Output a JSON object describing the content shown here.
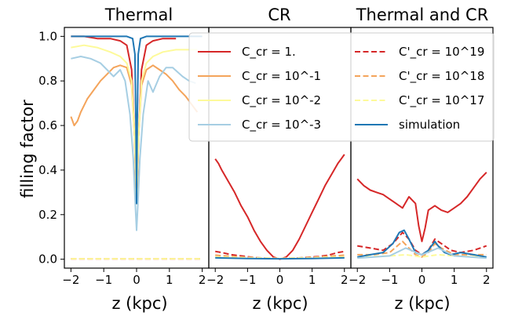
{
  "figure": {
    "ylabel": "filling factor",
    "xlabel": "z (kpc)"
  },
  "legend": {
    "left": [
      {
        "label": "C_cr = 1.",
        "color": "#d62728",
        "dash": "solid"
      },
      {
        "label": "C_cr = 10^-1",
        "color": "#f4a45b",
        "dash": "solid"
      },
      {
        "label": "C_cr = 10^-2",
        "color": "#fdfa9a",
        "dash": "solid"
      },
      {
        "label": "C_cr = 10^-3",
        "color": "#a6cee3",
        "dash": "solid"
      }
    ],
    "right": [
      {
        "label": "C'_cr = 10^19",
        "color": "#d62728",
        "dash": "dashed"
      },
      {
        "label": "C'_cr = 10^18",
        "color": "#f4a45b",
        "dash": "dashed"
      },
      {
        "label": "C'_cr = 10^17",
        "color": "#fdfa9a",
        "dash": "dashed"
      },
      {
        "label": "simulation",
        "color": "#1f77b4",
        "dash": "solid"
      }
    ]
  },
  "chart_data": [
    {
      "type": "line",
      "title": "Thermal",
      "xlabel": "z (kpc)",
      "ylabel": "filling factor",
      "xlim": [
        -2.2,
        2.2
      ],
      "ylim": [
        -0.04,
        1.04
      ],
      "xticks": [
        "−2",
        "−1",
        "0",
        "1",
        "2"
      ],
      "yticks": [
        "0.0",
        "0.2",
        "0.4",
        "0.6",
        "0.8",
        "1.0"
      ],
      "series": [
        {
          "key": "ccr_1",
          "color": "#d62728",
          "dash": "solid",
          "x": [
            -2,
            -1.6,
            -1.2,
            -0.8,
            -0.5,
            -0.3,
            -0.15,
            -0.06,
            -0.02,
            0,
            0.02,
            0.06,
            0.15,
            0.3,
            0.5,
            0.8,
            1.2
          ],
          "y": [
            1.0,
            1.0,
            0.99,
            0.99,
            0.98,
            0.96,
            0.85,
            0.55,
            0.3,
            0.25,
            0.3,
            0.55,
            0.85,
            0.96,
            0.98,
            0.99,
            0.99
          ]
        },
        {
          "key": "ccr_1e-1",
          "color": "#f4a45b",
          "dash": "solid",
          "x": [
            -2,
            -1.95,
            -1.9,
            -1.8,
            -1.7,
            -1.5,
            -1.3,
            -1.1,
            -0.9,
            -0.7,
            -0.5,
            -0.3,
            -0.15,
            -0.06,
            0,
            0.06,
            0.15,
            0.3,
            0.5,
            0.7,
            0.9,
            1.1,
            1.3,
            1.5,
            1.7,
            1.85
          ],
          "y": [
            0.64,
            0.62,
            0.6,
            0.62,
            0.66,
            0.72,
            0.76,
            0.8,
            0.83,
            0.86,
            0.87,
            0.86,
            0.78,
            0.55,
            0.25,
            0.55,
            0.78,
            0.85,
            0.87,
            0.85,
            0.83,
            0.8,
            0.76,
            0.73,
            0.69,
            0.66
          ]
        },
        {
          "key": "ccr_1e-2",
          "color": "#fdfa9a",
          "dash": "solid",
          "x": [
            -2,
            -1.6,
            -1.2,
            -0.8,
            -0.5,
            -0.3,
            -0.15,
            -0.06,
            0,
            0.06,
            0.15,
            0.3,
            0.5,
            0.8,
            1.2,
            1.6,
            1.85
          ],
          "y": [
            0.95,
            0.96,
            0.95,
            0.93,
            0.91,
            0.88,
            0.8,
            0.55,
            0.25,
            0.55,
            0.8,
            0.88,
            0.91,
            0.93,
            0.94,
            0.94,
            0.94
          ]
        },
        {
          "key": "ccr_1e-3",
          "color": "#a6cee3",
          "dash": "solid",
          "x": [
            -2,
            -1.7,
            -1.4,
            -1.1,
            -0.9,
            -0.7,
            -0.5,
            -0.35,
            -0.2,
            -0.1,
            -0.04,
            0,
            0.04,
            0.1,
            0.2,
            0.35,
            0.5,
            0.7,
            0.9,
            1.1,
            1.4,
            1.6,
            1.8
          ],
          "y": [
            0.9,
            0.91,
            0.9,
            0.88,
            0.85,
            0.82,
            0.85,
            0.8,
            0.65,
            0.45,
            0.25,
            0.13,
            0.25,
            0.45,
            0.65,
            0.8,
            0.75,
            0.82,
            0.86,
            0.86,
            0.82,
            0.8,
            0.79
          ]
        },
        {
          "key": "sim",
          "color": "#1f77b4",
          "dash": "solid",
          "x": [
            -2,
            -1.0,
            -0.3,
            -0.12,
            -0.05,
            -0.02,
            0,
            0.02,
            0.05,
            0.12,
            0.3,
            1.0,
            2.0
          ],
          "y": [
            1.0,
            1.0,
            1.0,
            0.99,
            0.92,
            0.6,
            0.25,
            0.6,
            0.92,
            0.99,
            1.0,
            1.0,
            1.0
          ]
        },
        {
          "key": "c19",
          "color": "#d62728",
          "dash": "dashed",
          "x": [
            -2,
            2
          ],
          "y": [
            0.002,
            0.002
          ]
        },
        {
          "key": "c18",
          "color": "#f4a45b",
          "dash": "dashed",
          "x": [
            -2,
            2
          ],
          "y": [
            0.002,
            0.002
          ]
        },
        {
          "key": "c17",
          "color": "#fdfa9a",
          "dash": "dashed",
          "x": [
            -2,
            2
          ],
          "y": [
            0.002,
            0.002
          ]
        }
      ]
    },
    {
      "type": "line",
      "title": "CR",
      "xlabel": "z (kpc)",
      "xlim": [
        -2.2,
        2.2
      ],
      "ylim": [
        -0.04,
        1.04
      ],
      "xticks": [
        "−2",
        "−1",
        "0",
        "1",
        "2"
      ],
      "series": [
        {
          "key": "ccr_1",
          "color": "#d62728",
          "dash": "solid",
          "x": [
            -2,
            -1.9,
            -1.8,
            -1.6,
            -1.4,
            -1.2,
            -1.0,
            -0.8,
            -0.6,
            -0.4,
            -0.2,
            0,
            0.2,
            0.4,
            0.6,
            0.8,
            1.0,
            1.2,
            1.4,
            1.6,
            1.8,
            1.9,
            2.0
          ],
          "y": [
            0.45,
            0.43,
            0.4,
            0.35,
            0.3,
            0.24,
            0.19,
            0.13,
            0.08,
            0.04,
            0.01,
            0.0,
            0.01,
            0.04,
            0.09,
            0.15,
            0.21,
            0.27,
            0.33,
            0.38,
            0.43,
            0.45,
            0.47
          ]
        },
        {
          "key": "c19",
          "color": "#d62728",
          "dash": "dashed",
          "x": [
            -2,
            -1.8,
            -1.5,
            -1.2,
            -0.8,
            -0.4,
            0,
            0.4,
            0.8,
            1.2,
            1.5,
            1.8,
            2.0
          ],
          "y": [
            0.035,
            0.03,
            0.02,
            0.015,
            0.008,
            0.004,
            0.002,
            0.004,
            0.008,
            0.012,
            0.018,
            0.03,
            0.035
          ]
        },
        {
          "key": "c18",
          "color": "#f4a45b",
          "dash": "dashed",
          "x": [
            -2,
            -1.0,
            0,
            1.0,
            2.0
          ],
          "y": [
            0.018,
            0.008,
            0.003,
            0.008,
            0.018
          ]
        },
        {
          "key": "c17",
          "color": "#fdfa9a",
          "dash": "dashed",
          "x": [
            -2,
            0,
            2
          ],
          "y": [
            0.01,
            0.004,
            0.01
          ]
        },
        {
          "key": "sim",
          "color": "#1f77b4",
          "dash": "solid",
          "x": [
            -2,
            -1.0,
            0,
            1.0,
            2.0
          ],
          "y": [
            0.006,
            0.003,
            0.002,
            0.003,
            0.006
          ]
        }
      ]
    },
    {
      "type": "line",
      "title": "Thermal and CR",
      "xlabel": "z (kpc)",
      "xlim": [
        -2.2,
        2.2
      ],
      "ylim": [
        -0.04,
        1.04
      ],
      "xticks": [
        "−2",
        "−1",
        "0",
        "1",
        "2"
      ],
      "series": [
        {
          "key": "ccr_1",
          "color": "#d62728",
          "dash": "solid",
          "x": [
            -2,
            -1.8,
            -1.6,
            -1.4,
            -1.2,
            -1.0,
            -0.8,
            -0.6,
            -0.4,
            -0.2,
            -0.1,
            0,
            0.1,
            0.2,
            0.4,
            0.6,
            0.8,
            1.0,
            1.2,
            1.4,
            1.6,
            1.8,
            2.0
          ],
          "y": [
            0.36,
            0.33,
            0.31,
            0.3,
            0.29,
            0.27,
            0.25,
            0.23,
            0.28,
            0.25,
            0.15,
            0.08,
            0.14,
            0.22,
            0.24,
            0.22,
            0.21,
            0.23,
            0.25,
            0.28,
            0.32,
            0.36,
            0.39
          ]
        },
        {
          "key": "c19",
          "color": "#d62728",
          "dash": "dashed",
          "x": [
            -2,
            -1.6,
            -1.2,
            -0.9,
            -0.6,
            -0.4,
            -0.2,
            0,
            0.2,
            0.4,
            0.6,
            0.9,
            1.2,
            1.6,
            2.0
          ],
          "y": [
            0.06,
            0.05,
            0.04,
            0.07,
            0.12,
            0.09,
            0.04,
            0.02,
            0.04,
            0.09,
            0.07,
            0.04,
            0.03,
            0.04,
            0.06
          ]
        },
        {
          "key": "c18",
          "color": "#f4a45b",
          "dash": "dashed",
          "x": [
            -2,
            -1.5,
            -1.0,
            -0.6,
            -0.4,
            -0.2,
            0,
            0.2,
            0.4,
            0.6,
            1.0,
            1.5,
            2.0
          ],
          "y": [
            0.02,
            0.02,
            0.03,
            0.08,
            0.05,
            0.02,
            0.01,
            0.03,
            0.07,
            0.05,
            0.02,
            0.02,
            0.02
          ]
        },
        {
          "key": "c17",
          "color": "#fdfa9a",
          "dash": "dashed",
          "x": [
            -2,
            -1.0,
            -0.5,
            0,
            0.5,
            1.0,
            2.0
          ],
          "y": [
            0.01,
            0.015,
            0.02,
            0.01,
            0.02,
            0.015,
            0.01
          ]
        },
        {
          "key": "sim",
          "color": "#1f77b4",
          "dash": "solid",
          "x": [
            -2,
            -1.6,
            -1.2,
            -0.9,
            -0.7,
            -0.55,
            -0.4,
            -0.2,
            0,
            0.2,
            0.4,
            0.5,
            0.7,
            0.9,
            1.2,
            1.6,
            2.0
          ],
          "y": [
            0.01,
            0.02,
            0.03,
            0.07,
            0.12,
            0.13,
            0.09,
            0.03,
            0.02,
            0.04,
            0.08,
            0.06,
            0.03,
            0.02,
            0.03,
            0.02,
            0.01
          ]
        },
        {
          "key": "ccr_1e-3",
          "color": "#a6cee3",
          "dash": "solid",
          "x": [
            -2,
            -1.0,
            -0.5,
            0,
            0.5,
            1.0,
            2.0
          ],
          "y": [
            0.005,
            0.015,
            0.05,
            0.02,
            0.05,
            0.015,
            0.005
          ]
        }
      ]
    }
  ]
}
